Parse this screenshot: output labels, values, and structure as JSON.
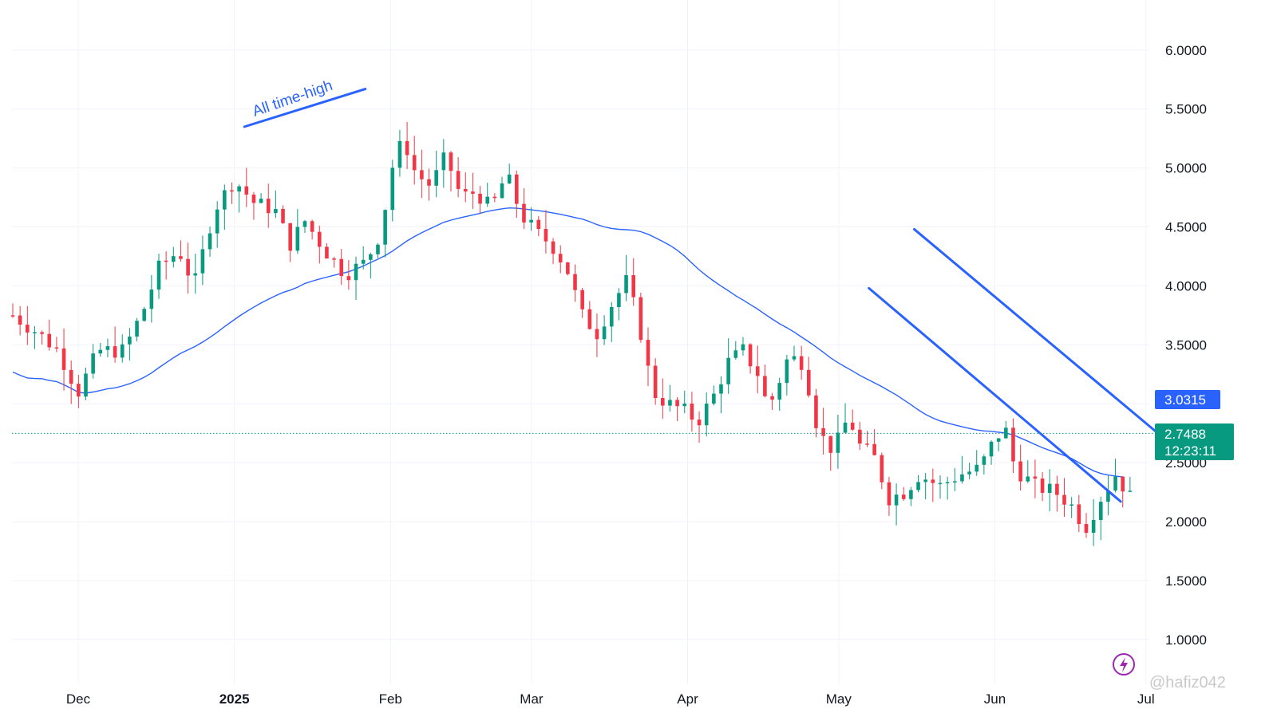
{
  "chart_data": {
    "type": "candlestick",
    "y_axis": {
      "ticks": [
        "6.0000",
        "5.5000",
        "5.0000",
        "4.5000",
        "4.0000",
        "3.5000",
        "2.5000",
        "2.0000",
        "1.5000",
        "1.0000"
      ],
      "tick_values": [
        6.0,
        5.5,
        5.0,
        4.5,
        4.0,
        3.5,
        2.5,
        2.0,
        1.5,
        1.0
      ],
      "range": [
        0.5,
        6.4
      ]
    },
    "x_axis": {
      "ticks": [
        "Dec",
        "2025",
        "Feb",
        "Mar",
        "Apr",
        "May",
        "Jun",
        "Jul"
      ],
      "range": [
        "2024-11-18",
        "2025-07-06"
      ]
    },
    "last_price": {
      "value": "2.7488",
      "countdown": "12:23:11",
      "color": "#089981"
    },
    "moving_average": {
      "value": "3.0315",
      "color": "#2962ff"
    },
    "annotation": "All time-high",
    "colors": {
      "up": "#089981",
      "down": "#f23645",
      "line": "#2962ff",
      "grid": "#f0f3fa"
    },
    "watermark": "@hafiz042",
    "grid": true
  }
}
